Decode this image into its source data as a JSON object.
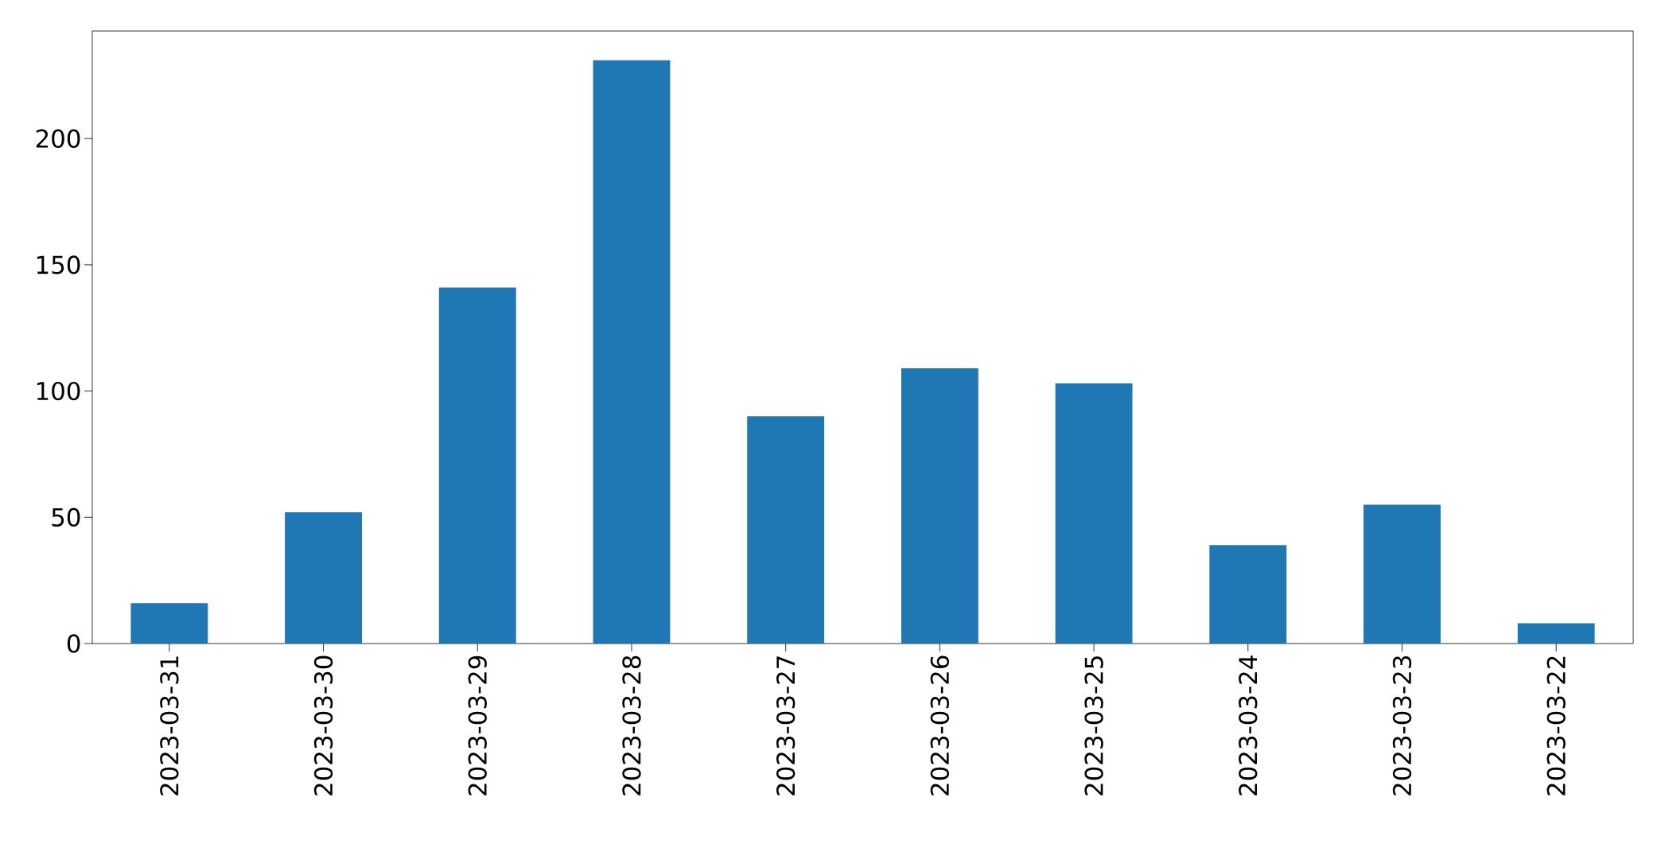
{
  "chart_data": {
    "type": "bar",
    "categories": [
      "2023-03-31",
      "2023-03-30",
      "2023-03-29",
      "2023-03-28",
      "2023-03-27",
      "2023-03-26",
      "2023-03-25",
      "2023-03-24",
      "2023-03-23",
      "2023-03-22"
    ],
    "values": [
      16,
      52,
      141,
      231,
      90,
      109,
      103,
      39,
      55,
      8
    ],
    "color": "#1f77b4",
    "ylim": [
      0,
      242.6
    ],
    "yticks": [
      0,
      50,
      100,
      150,
      200
    ],
    "grid": false
  }
}
